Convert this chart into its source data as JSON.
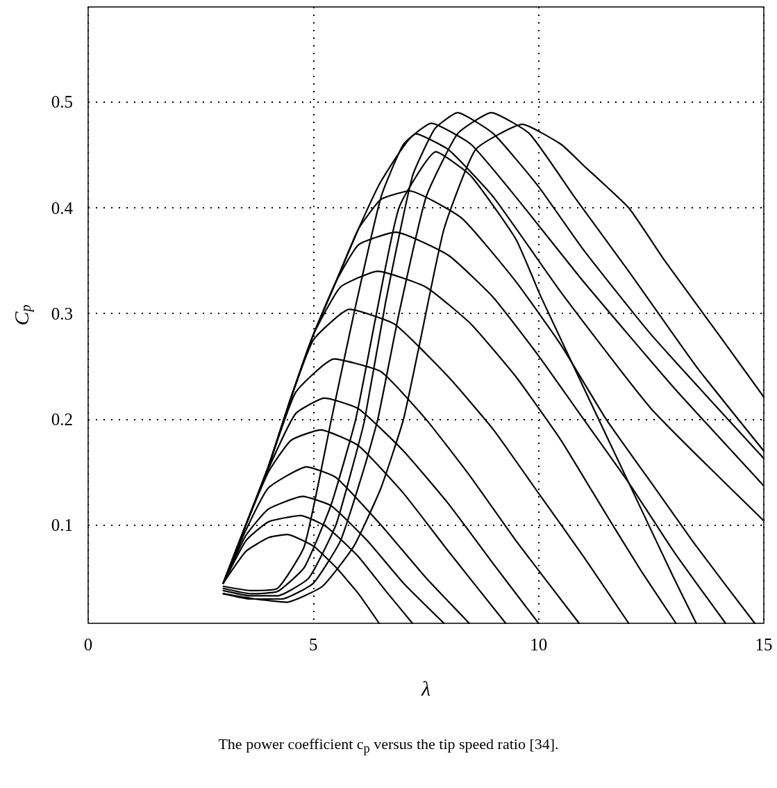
{
  "chart_data": {
    "type": "line",
    "xlabel": "λ",
    "ylabel": "C$_{p}$",
    "annotations": [
      "The power coefficient c$_{p}$ versus the tip speed ratio [34]."
    ],
    "xlim": [
      0,
      15
    ],
    "xticks": [
      0,
      5,
      10,
      15
    ],
    "ylim": [
      0.007,
      0.59
    ],
    "yticks": [
      0.1,
      0.2,
      0.3,
      0.4,
      0.5
    ],
    "grid": true,
    "marker": "none",
    "line_style": "solid",
    "series": [
      {
        "color": "#000000",
        "x": [
          3,
          3.5,
          4,
          4.42,
          5,
          5.5,
          6,
          6.46
        ],
        "values": [
          0.045,
          0.075,
          0.088,
          0.091,
          0.08,
          0.06,
          0.035,
          0.007
        ]
      },
      {
        "color": "#000000",
        "x": [
          3,
          3.5,
          4,
          4.72,
          5.3,
          6,
          6.6,
          7.2
        ],
        "values": [
          0.045,
          0.085,
          0.103,
          0.109,
          0.098,
          0.07,
          0.038,
          0.007
        ]
      },
      {
        "color": "#000000",
        "x": [
          3,
          3.5,
          4,
          4.76,
          5.4,
          6.2,
          7,
          7.9
        ],
        "values": [
          0.045,
          0.09,
          0.115,
          0.127,
          0.118,
          0.085,
          0.045,
          0.007
        ]
      },
      {
        "color": "#000000",
        "x": [
          3,
          3.5,
          4,
          4.85,
          5.5,
          6.5,
          7.5,
          8.46
        ],
        "values": [
          0.045,
          0.095,
          0.135,
          0.155,
          0.145,
          0.1,
          0.05,
          0.007
        ]
      },
      {
        "color": "#000000",
        "x": [
          3,
          3.5,
          4,
          4.5,
          5.16,
          6,
          7,
          8,
          9.27
        ],
        "values": [
          0.045,
          0.1,
          0.15,
          0.18,
          0.19,
          0.175,
          0.13,
          0.075,
          0.007
        ]
      },
      {
        "color": "#000000",
        "x": [
          3,
          3.5,
          4,
          4.6,
          5.25,
          6,
          7,
          8,
          9,
          10
        ],
        "values": [
          0.045,
          0.1,
          0.153,
          0.205,
          0.22,
          0.21,
          0.17,
          0.12,
          0.063,
          0.007
        ]
      },
      {
        "color": "#000000",
        "x": [
          3,
          3.5,
          4,
          4.6,
          5.46,
          6.5,
          7.5,
          8.5,
          9.5,
          10.9
        ],
        "values": [
          0.045,
          0.1,
          0.155,
          0.225,
          0.257,
          0.245,
          0.2,
          0.145,
          0.085,
          0.007
        ]
      },
      {
        "color": "#000000",
        "x": [
          3,
          3.5,
          4,
          4.5,
          5,
          5.8,
          6.8,
          8,
          9,
          10,
          11,
          12
        ],
        "values": [
          0.045,
          0.1,
          0.155,
          0.22,
          0.275,
          0.304,
          0.29,
          0.24,
          0.19,
          0.13,
          0.07,
          0.007
        ]
      },
      {
        "color": "#000000",
        "x": [
          3,
          3.5,
          4,
          4.5,
          5,
          5.6,
          6.43,
          7.5,
          8.5,
          9.5,
          10.5,
          11.5,
          12.3,
          13.05
        ],
        "values": [
          0.045,
          0.1,
          0.155,
          0.22,
          0.28,
          0.325,
          0.34,
          0.325,
          0.29,
          0.24,
          0.18,
          0.11,
          0.055,
          0.007
        ]
      },
      {
        "color": "#000000",
        "x": [
          3,
          3.5,
          4,
          4.5,
          5,
          5.5,
          6,
          6.83,
          8,
          9,
          10,
          11,
          12,
          13,
          14.15
        ],
        "values": [
          0.045,
          0.1,
          0.155,
          0.22,
          0.28,
          0.33,
          0.365,
          0.377,
          0.355,
          0.315,
          0.26,
          0.2,
          0.14,
          0.075,
          0.007
        ]
      },
      {
        "color": "#000000",
        "x": [
          3,
          3.5,
          4,
          4.5,
          5,
          5.5,
          6,
          6.5,
          7.13,
          8.3,
          9.5,
          10.5,
          11.5,
          12.5,
          13.5,
          14.8
        ],
        "values": [
          0.045,
          0.1,
          0.155,
          0.22,
          0.28,
          0.33,
          0.38,
          0.408,
          0.416,
          0.39,
          0.33,
          0.27,
          0.2,
          0.14,
          0.08,
          0.007
        ]
      },
      {
        "color": "#000000",
        "x": [
          3,
          3.5,
          4,
          4.5,
          5,
          5.5,
          6,
          6.5,
          7.28,
          8,
          9,
          10.5,
          12.5,
          15
        ],
        "values": [
          0.045,
          0.1,
          0.155,
          0.22,
          0.28,
          0.33,
          0.38,
          0.425,
          0.47,
          0.455,
          0.41,
          0.32,
          0.21,
          0.104
        ]
      },
      {
        "color": "#000000",
        "x": [
          3,
          3.6,
          4.2,
          4.8,
          5.4,
          5.94,
          6.4,
          6.9,
          7.72,
          8.5,
          9.5,
          10.05,
          11,
          12,
          13,
          13.5
        ],
        "values": [
          0.04,
          0.035,
          0.037,
          0.06,
          0.12,
          0.2,
          0.3,
          0.4,
          0.453,
          0.43,
          0.37,
          0.316,
          0.23,
          0.14,
          0.05,
          0.007
        ]
      },
      {
        "color": "#000000",
        "x": [
          3,
          3.6,
          4.2,
          4.8,
          5.4,
          5.9,
          6.5,
          7,
          7.62,
          8.5,
          9.5,
          11,
          13,
          15
        ],
        "values": [
          0.042,
          0.038,
          0.04,
          0.08,
          0.2,
          0.3,
          0.41,
          0.46,
          0.48,
          0.46,
          0.41,
          0.33,
          0.23,
          0.137
        ]
      },
      {
        "color": "#000000",
        "x": [
          3,
          3.6,
          4.2,
          4.9,
          5.5,
          5.9,
          6.14,
          6.6,
          7.2,
          7.7,
          8.2,
          9,
          10,
          11,
          12.5,
          15
        ],
        "values": [
          0.038,
          0.033,
          0.033,
          0.05,
          0.1,
          0.16,
          0.2,
          0.31,
          0.43,
          0.475,
          0.49,
          0.47,
          0.42,
          0.36,
          0.28,
          0.163
        ]
      },
      {
        "color": "#000000",
        "x": [
          3,
          3.6,
          4.3,
          5,
          5.6,
          6.1,
          6.43,
          6.9,
          7.5,
          8.2,
          8.95,
          9.8,
          10.8,
          12,
          13.5,
          15
        ],
        "values": [
          0.035,
          0.03,
          0.03,
          0.045,
          0.085,
          0.15,
          0.2,
          0.3,
          0.41,
          0.47,
          0.49,
          0.47,
          0.41,
          0.34,
          0.25,
          0.17
        ]
      },
      {
        "color": "#000000",
        "x": [
          3,
          3.7,
          4.4,
          5.2,
          5.9,
          6.5,
          7,
          7.4,
          7.9,
          8.6,
          9.64,
          10.5,
          11,
          12,
          12.8,
          14,
          15
        ],
        "values": [
          0.035,
          0.03,
          0.027,
          0.042,
          0.08,
          0.135,
          0.2,
          0.28,
          0.38,
          0.455,
          0.479,
          0.46,
          0.44,
          0.4,
          0.35,
          0.28,
          0.221
        ]
      }
    ]
  }
}
